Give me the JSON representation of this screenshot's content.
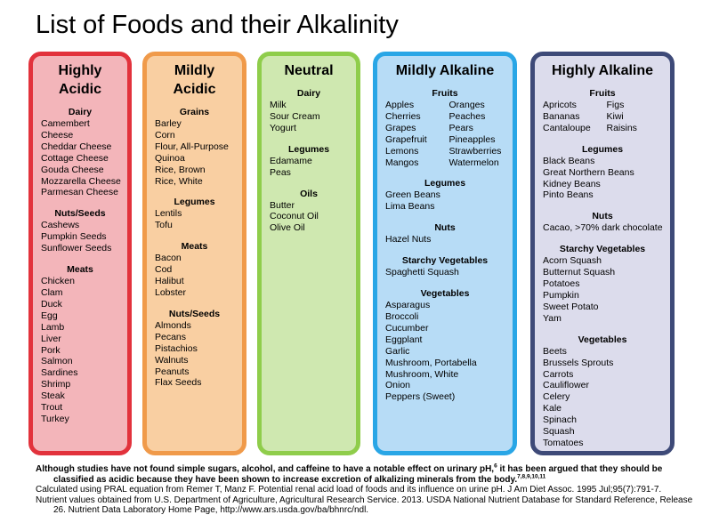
{
  "title": "List of Foods and their Alkalinity",
  "columns": [
    {
      "title": "Highly\nAcidic",
      "sections": [
        {
          "heading": "Dairy",
          "items": [
            "Camembert",
            "Cheese",
            "Cheddar Cheese",
            "Cottage Cheese",
            "Gouda Cheese",
            "Mozzarella Cheese",
            "Parmesan Cheese"
          ]
        },
        {
          "heading": "Nuts/Seeds",
          "items": [
            "Cashews",
            "Pumpkin Seeds",
            "Sunflower Seeds"
          ]
        },
        {
          "heading": "Meats",
          "items": [
            "Chicken",
            "Clam",
            "Duck",
            "Egg",
            "Lamb",
            "Liver",
            "Pork",
            "Salmon",
            "Sardines",
            "Shrimp",
            "Steak",
            "Trout",
            "Turkey"
          ]
        }
      ]
    },
    {
      "title": "Mildly\nAcidic",
      "sections": [
        {
          "heading": "Grains",
          "items": [
            "Barley",
            "Corn",
            "Flour, All-Purpose",
            "Quinoa",
            "Rice, Brown",
            "Rice, White"
          ]
        },
        {
          "heading": "Legumes",
          "items": [
            "Lentils",
            "Tofu"
          ]
        },
        {
          "heading": "Meats",
          "items": [
            "Bacon",
            "Cod",
            "Halibut",
            "Lobster"
          ]
        },
        {
          "heading": "Nuts/Seeds",
          "items": [
            "Almonds",
            "Pecans",
            "Pistachios",
            "Walnuts",
            "Peanuts",
            "Flax Seeds"
          ]
        }
      ]
    },
    {
      "title": "Neutral",
      "sections": [
        {
          "heading": "Dairy",
          "items": [
            "Milk",
            "Sour Cream",
            "Yogurt"
          ]
        },
        {
          "heading": "Legumes",
          "items": [
            "Edamame",
            "Peas"
          ]
        },
        {
          "heading": "Oils",
          "items": [
            "Butter",
            "Coconut Oil",
            "Olive Oil"
          ]
        }
      ]
    },
    {
      "title": "Mildly Alkaline",
      "sections": [
        {
          "heading": "Fruits",
          "item_columns": [
            [
              "Apples",
              "Cherries",
              "Grapes",
              "Grapefruit",
              "Lemons",
              "Mangos"
            ],
            [
              "Oranges",
              "Peaches",
              "Pears",
              "Pineapples",
              "Strawberries",
              "Watermelon"
            ]
          ]
        },
        {
          "heading": "Legumes",
          "items": [
            "Green Beans",
            "Lima Beans"
          ]
        },
        {
          "heading": "Nuts",
          "items": [
            "Hazel Nuts"
          ]
        },
        {
          "heading": "Starchy Vegetables",
          "items": [
            "Spaghetti Squash"
          ]
        },
        {
          "heading": "Vegetables",
          "items": [
            "Asparagus",
            "Broccoli",
            "Cucumber",
            "Eggplant",
            "Garlic",
            "Mushroom, Portabella",
            "Mushroom, White",
            "Onion",
            "Peppers (Sweet)"
          ]
        }
      ]
    },
    {
      "title": "Highly Alkaline",
      "sections": [
        {
          "heading": "Fruits",
          "item_columns": [
            [
              "Apricots",
              "Bananas",
              "Cantaloupe"
            ],
            [
              "Figs",
              "Kiwi",
              "Raisins"
            ]
          ]
        },
        {
          "heading": "Legumes",
          "items": [
            "Black Beans",
            "Great Northern Beans",
            "Kidney Beans",
            "Pinto Beans"
          ]
        },
        {
          "heading": "Nuts",
          "items": [
            "Cacao, >70% dark chocolate"
          ]
        },
        {
          "heading": "Starchy Vegetables",
          "items": [
            "Acorn Squash",
            "Butternut Squash",
            "Potatoes",
            "Pumpkin",
            "Sweet Potato",
            "Yam"
          ]
        },
        {
          "heading": "Vegetables",
          "items": [
            "Beets",
            "Brussels Sprouts",
            "Carrots",
            "Cauliflower",
            "Celery",
            "Kale",
            "Spinach",
            "Squash",
            "Tomatoes"
          ]
        }
      ]
    }
  ],
  "notes": [
    {
      "text_1": "Although studies have not found simple sugars, alcohol, and caffeine to have a notable effect on urinary pH,",
      "sup_1": "6",
      "text_2": " it has been argued that they should be classified as acidic because they have been shown to increase excretion of alkalizing minerals from the body.",
      "sup_2": "7,8,9,10,11"
    },
    {
      "text": "Calculated using PRAL equation from Remer T, Manz F. Potential renal acid load of foods and its influence on urine pH. J Am Diet Assoc. 1995 Jul;95(7):791-7."
    },
    {
      "text": "Nutrient values obtained from U.S. Department of Agriculture, Agricultural Research Service. 2013. USDA National Nutrient Database for Standard Reference, Release 26. Nutrient Data Laboratory Home Page, http://www.ars.usda.gov/ba/bhnrc/ndl."
    }
  ]
}
